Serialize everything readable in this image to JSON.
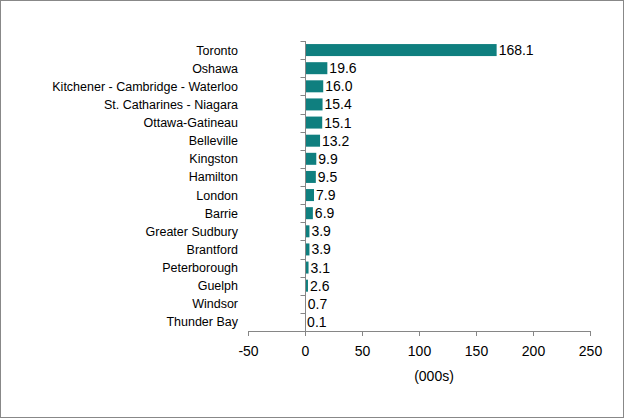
{
  "chart_data": {
    "type": "bar",
    "orientation": "horizontal",
    "x_label": "(000s)",
    "categories": [
      "Toronto",
      "Oshawa",
      "Kitchener - Cambridge - Waterloo",
      "St. Catharines - Niagara",
      "Ottawa-Gatineau",
      "Belleville",
      "Kingston",
      "Hamilton",
      "London",
      "Barrie",
      "Greater Sudbury",
      "Brantford",
      "Peterborough",
      "Guelph",
      "Windsor",
      "Thunder Bay"
    ],
    "values": [
      168.1,
      19.6,
      16.0,
      15.4,
      15.1,
      13.2,
      9.9,
      9.5,
      7.9,
      6.9,
      3.9,
      3.9,
      3.1,
      2.6,
      0.7,
      0.1
    ],
    "value_labels": [
      "168.1",
      "19.6",
      "16.0",
      "15.4",
      "15.1",
      "13.2",
      "9.9",
      "9.5",
      "7.9",
      "6.9",
      "3.9",
      "3.9",
      "3.1",
      "2.6",
      "0.7",
      "0.1"
    ],
    "color": "#0f7f7f",
    "xlim": [
      -50,
      250
    ],
    "xticks": [
      -50,
      0,
      50,
      100,
      150,
      200,
      250
    ],
    "grid": false,
    "data_labels": true
  }
}
